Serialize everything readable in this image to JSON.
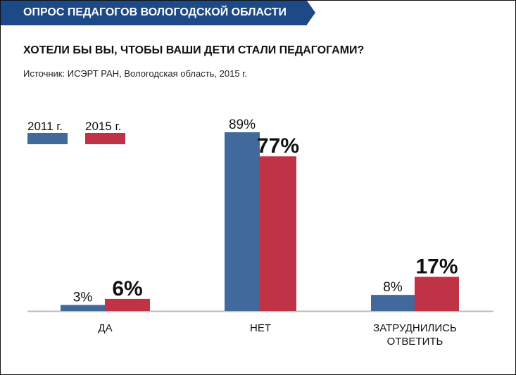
{
  "header": {
    "banner": "ОПРОС ПЕДАГОГОВ ВОЛОГОДСКОЙ ОБЛАСТИ",
    "question": "ХОТЕЛИ БЫ ВЫ, ЧТОБЫ ВАШИ ДЕТИ СТАЛИ ПЕДАГОГАМИ?",
    "source": "Источник: ИСЭРТ РАН, Вологодская область, 2015 г."
  },
  "chart_data": {
    "type": "bar",
    "title": "ХОТЕЛИ БЫ ВЫ, ЧТОБЫ ВАШИ ДЕТИ СТАЛИ ПЕДАГОГАМИ?",
    "categories": [
      "ДА",
      "НЕТ",
      "ЗАТРУДНИЛИСЬ ОТВЕТИТЬ"
    ],
    "series": [
      {
        "name": "2011 г.",
        "values": [
          3,
          89,
          8
        ],
        "labels": [
          "3%",
          "89%",
          "8%"
        ],
        "color": "#41699b"
      },
      {
        "name": "2015 г.",
        "values": [
          6,
          77,
          17
        ],
        "labels": [
          "6%",
          "77%",
          "17%"
        ],
        "color": "#c03245"
      }
    ],
    "legend": "top-left",
    "ylim": [
      0,
      100
    ],
    "grid": false
  }
}
